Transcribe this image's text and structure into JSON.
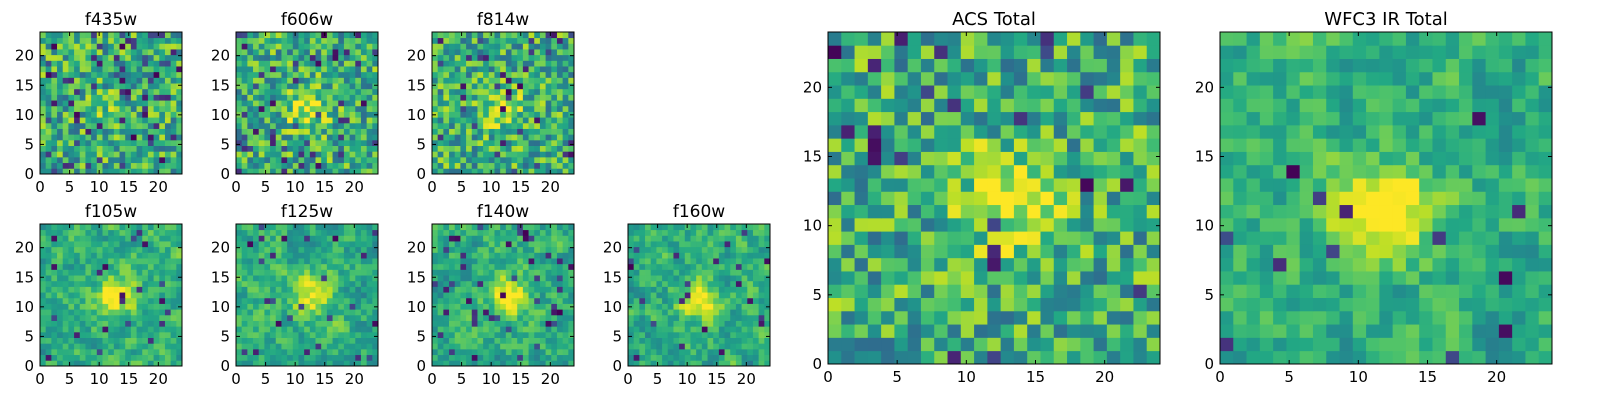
{
  "figure": {
    "panels": [
      {
        "title": "f435w",
        "xticks": [
          "0",
          "5",
          "10",
          "15",
          "20"
        ],
        "yticks": [
          "0",
          "5",
          "10",
          "15",
          "20"
        ],
        "seed": 11,
        "peak": [
          12,
          11
        ],
        "peak_strength": 0.1,
        "smooth": 0,
        "dark_fraction": 0.1
      },
      {
        "title": "f606w",
        "xticks": [
          "0",
          "5",
          "10",
          "15",
          "20"
        ],
        "yticks": [
          "0",
          "5",
          "10",
          "15",
          "20"
        ],
        "seed": 23,
        "peak": [
          12,
          11
        ],
        "peak_strength": 0.35,
        "smooth": 0,
        "dark_fraction": 0.06
      },
      {
        "title": "f814w",
        "xticks": [
          "0",
          "5",
          "10",
          "15",
          "20"
        ],
        "yticks": [
          "0",
          "5",
          "10",
          "15",
          "20"
        ],
        "seed": 37,
        "peak": [
          12,
          11
        ],
        "peak_strength": 0.3,
        "smooth": 0,
        "dark_fraction": 0.06
      },
      {
        "title": "f105w",
        "xticks": [
          "0",
          "5",
          "10",
          "15",
          "20"
        ],
        "yticks": [
          "0",
          "5",
          "10",
          "15",
          "20"
        ],
        "seed": 41,
        "peak": [
          13,
          12
        ],
        "peak_strength": 0.45,
        "smooth": 1,
        "dark_fraction": 0.04
      },
      {
        "title": "f125w",
        "xticks": [
          "0",
          "5",
          "10",
          "15",
          "20"
        ],
        "yticks": [
          "0",
          "5",
          "10",
          "15",
          "20"
        ],
        "seed": 53,
        "peak": [
          13,
          12
        ],
        "peak_strength": 0.35,
        "smooth": 1,
        "dark_fraction": 0.05
      },
      {
        "title": "f140w",
        "xticks": [
          "0",
          "5",
          "10",
          "15",
          "20"
        ],
        "yticks": [
          "0",
          "5",
          "10",
          "15",
          "20"
        ],
        "seed": 67,
        "peak": [
          13,
          12
        ],
        "peak_strength": 0.4,
        "smooth": 1,
        "dark_fraction": 0.05
      },
      {
        "title": "f160w",
        "xticks": [
          "0",
          "5",
          "10",
          "15",
          "20"
        ],
        "yticks": [
          "0",
          "5",
          "10",
          "15",
          "20"
        ],
        "seed": 79,
        "peak": [
          12,
          11
        ],
        "peak_strength": 0.4,
        "smooth": 1,
        "dark_fraction": 0.05
      },
      {
        "title": "ACS Total",
        "xticks": [
          "0",
          "5",
          "10",
          "15",
          "20"
        ],
        "yticks": [
          "0",
          "5",
          "10",
          "15",
          "20"
        ],
        "seed": 97,
        "peak": [
          13,
          12
        ],
        "peak_strength": 0.4,
        "smooth": 0,
        "dark_fraction": 0.04
      },
      {
        "title": "WFC3 IR Total",
        "xticks": [
          "0",
          "5",
          "10",
          "15",
          "20"
        ],
        "yticks": [
          "0",
          "5",
          "10",
          "15",
          "20"
        ],
        "seed": 131,
        "peak": [
          12,
          11
        ],
        "peak_strength": 0.55,
        "smooth": 1,
        "dark_fraction": 0.03
      }
    ]
  },
  "chart_data": [
    {
      "type": "heatmap",
      "title": "f435w",
      "xlim": [
        0,
        24
      ],
      "ylim": [
        0,
        24
      ],
      "grid": false,
      "colormap": "viridis",
      "notes": "25x25 pixel cutout, noise-dominated"
    },
    {
      "type": "heatmap",
      "title": "f606w",
      "xlim": [
        0,
        24
      ],
      "ylim": [
        0,
        24
      ],
      "grid": false,
      "colormap": "viridis"
    },
    {
      "type": "heatmap",
      "title": "f814w",
      "xlim": [
        0,
        24
      ],
      "ylim": [
        0,
        24
      ],
      "grid": false,
      "colormap": "viridis"
    },
    {
      "type": "heatmap",
      "title": "f105w",
      "xlim": [
        0,
        24
      ],
      "ylim": [
        0,
        24
      ],
      "grid": false,
      "colormap": "viridis"
    },
    {
      "type": "heatmap",
      "title": "f125w",
      "xlim": [
        0,
        24
      ],
      "ylim": [
        0,
        24
      ],
      "grid": false,
      "colormap": "viridis"
    },
    {
      "type": "heatmap",
      "title": "f140w",
      "xlim": [
        0,
        24
      ],
      "ylim": [
        0,
        24
      ],
      "grid": false,
      "colormap": "viridis"
    },
    {
      "type": "heatmap",
      "title": "f160w",
      "xlim": [
        0,
        24
      ],
      "ylim": [
        0,
        24
      ],
      "grid": false,
      "colormap": "viridis"
    },
    {
      "type": "heatmap",
      "title": "ACS Total",
      "xlim": [
        0,
        24
      ],
      "ylim": [
        0,
        24
      ],
      "grid": false,
      "colormap": "viridis"
    },
    {
      "type": "heatmap",
      "title": "WFC3 IR Total",
      "xlim": [
        0,
        24
      ],
      "ylim": [
        0,
        24
      ],
      "grid": false,
      "colormap": "viridis"
    }
  ]
}
